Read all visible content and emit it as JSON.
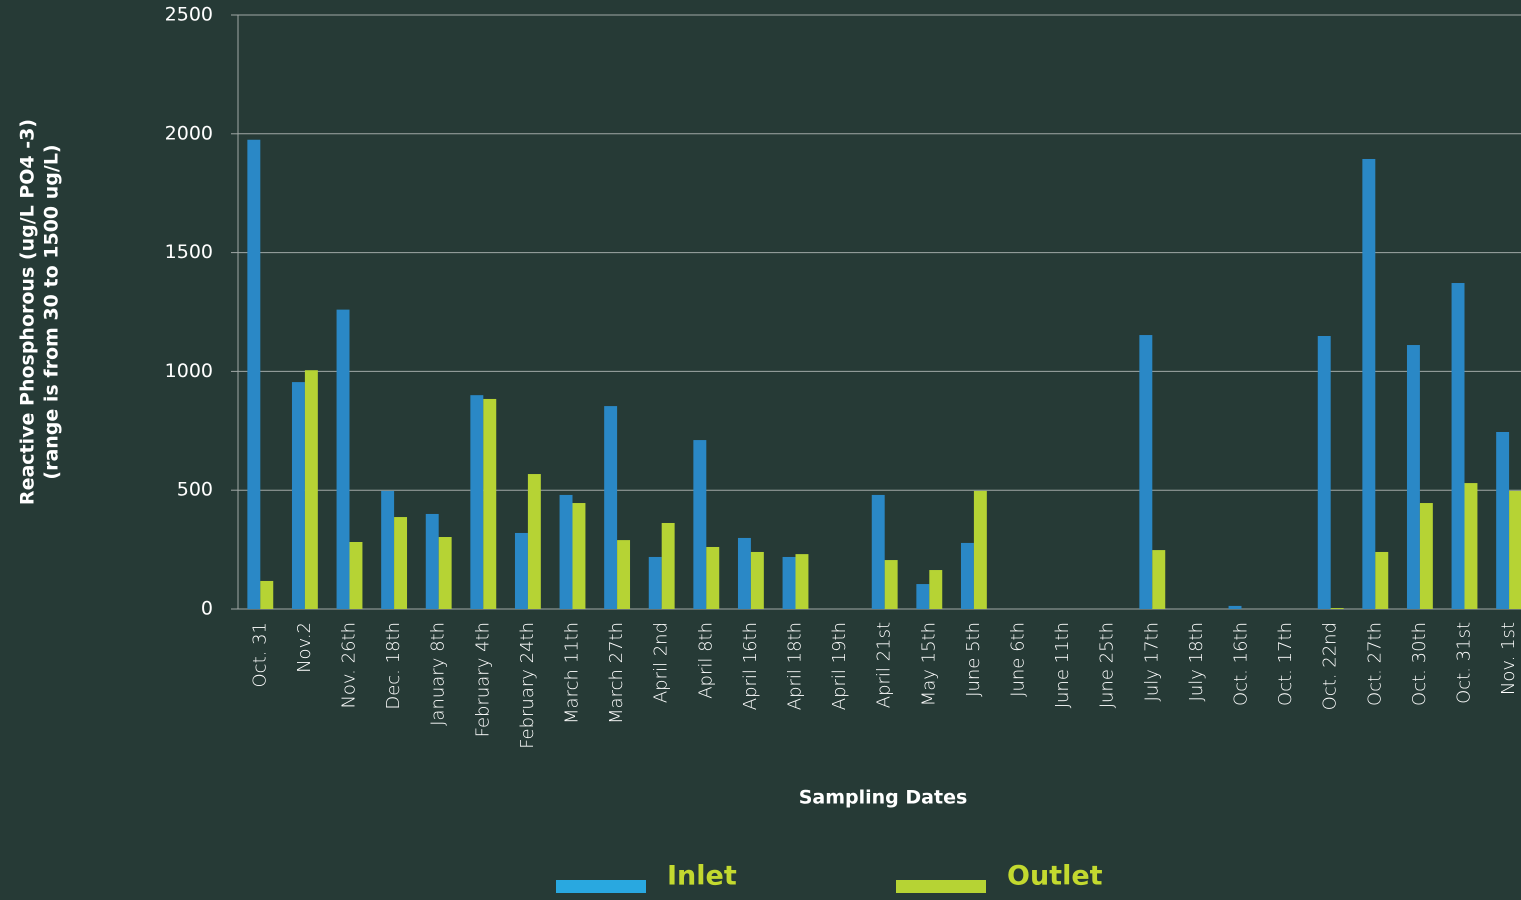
{
  "chart_data": {
    "type": "bar",
    "y_label": [
      "Reactive Phosphorous (ug/L PO4 -3)",
      "(range is from 30 to 1500 ug/L)"
    ],
    "x_label": "Sampling Dates",
    "categories": [
      "Oct. 31",
      "Nov.2",
      "Nov. 26th",
      "Dec. 18th",
      "January 8th",
      "February 4th",
      "February 24th",
      "March 11th",
      "March 27th",
      "April 2nd",
      "April 8th",
      "April 16th",
      "April 18th",
      "April 19th",
      "April 21st",
      "May 15th",
      "June 5th",
      "June 6th",
      "June 11th",
      "June  25th",
      "July 17th",
      "July 18th",
      "Oct. 16th",
      "Oct. 17th",
      "Oct. 22nd",
      "Oct. 27th",
      "Oct. 30th",
      "Oct. 31st",
      "Nov. 1st"
    ],
    "series": [
      {
        "name": "Inlet",
        "color": "#2a88c6",
        "legend_color": "#29a8e0",
        "values": [
          1975,
          955,
          1260,
          497,
          400,
          900,
          320,
          480,
          854,
          219,
          711,
          299,
          219,
          0,
          480,
          105,
          278,
          0,
          0,
          0,
          1153,
          0,
          13,
          0,
          1149,
          1894,
          1111,
          1372,
          745
        ]
      },
      {
        "name": "Outlet",
        "color": "#b6d334",
        "legend_color": "#b6d334",
        "values": [
          118,
          1005,
          282,
          387,
          303,
          884,
          568,
          446,
          290,
          362,
          261,
          240,
          231,
          0,
          206,
          164,
          497,
          0,
          0,
          0,
          248,
          0,
          0,
          0,
          4,
          240,
          446,
          530,
          497
        ]
      }
    ],
    "ylim": [
      0,
      2500
    ],
    "yticks": [
      0,
      500,
      1000,
      1500,
      2000,
      2500
    ],
    "grid": true,
    "legend": "bottom"
  }
}
